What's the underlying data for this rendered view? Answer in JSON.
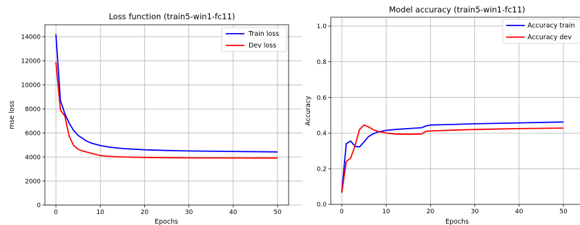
{
  "chart_data": [
    {
      "type": "line",
      "title": "Loss function (train5-win1-fc11)",
      "xlabel": "Epochs",
      "ylabel": "mse loss",
      "xlim": [
        -2.5,
        52.5
      ],
      "ylim": [
        0,
        15000
      ],
      "xticks": [
        0,
        10,
        20,
        30,
        40,
        50
      ],
      "yticks": [
        0,
        2000,
        4000,
        6000,
        8000,
        10000,
        12000,
        14000
      ],
      "grid": true,
      "legend_position": "top-right",
      "series": [
        {
          "name": "Train loss",
          "color": "#0000ff",
          "x": [
            0,
            1,
            2,
            3,
            4,
            5,
            6,
            7,
            8,
            10,
            12,
            15,
            20,
            25,
            30,
            40,
            50
          ],
          "y": [
            14200,
            8700,
            7600,
            6800,
            6200,
            5800,
            5550,
            5300,
            5150,
            4950,
            4820,
            4700,
            4600,
            4540,
            4500,
            4460,
            4420
          ]
        },
        {
          "name": "Dev loss",
          "color": "#ff0000",
          "x": [
            0,
            1,
            2,
            3,
            4,
            5,
            6,
            7,
            8,
            10,
            12,
            15,
            20,
            25,
            30,
            40,
            50
          ],
          "y": [
            11900,
            7900,
            7400,
            5700,
            4950,
            4650,
            4500,
            4400,
            4300,
            4120,
            4050,
            4000,
            3960,
            3940,
            3920,
            3915,
            3910
          ]
        }
      ]
    },
    {
      "type": "line",
      "title": "Model accuracy (train5-win1-fc11)",
      "xlabel": "Epochs",
      "ylabel": "Accuracy",
      "xlim": [
        -2.5,
        52.5
      ],
      "ylim": [
        0.0,
        1.05
      ],
      "xticks": [
        0,
        10,
        20,
        30,
        40,
        50
      ],
      "yticks": [
        0.0,
        0.2,
        0.4,
        0.6,
        0.8,
        1.0
      ],
      "ytick_labels": [
        "0.0",
        "0.2",
        "0.4",
        "0.6",
        "0.8",
        "1.0"
      ],
      "grid": true,
      "legend_position": "top-right",
      "series": [
        {
          "name": "Accuracy train",
          "color": "#0000ff",
          "x": [
            0,
            1,
            2,
            3,
            4,
            5,
            6,
            7,
            8,
            10,
            12,
            15,
            18,
            19,
            20,
            25,
            30,
            40,
            50
          ],
          "y": [
            0.07,
            0.34,
            0.355,
            0.325,
            0.322,
            0.35,
            0.38,
            0.395,
            0.405,
            0.415,
            0.42,
            0.425,
            0.43,
            0.44,
            0.445,
            0.448,
            0.452,
            0.457,
            0.462
          ]
        },
        {
          "name": "Accuracy dev",
          "color": "#ff0000",
          "x": [
            0,
            1,
            2,
            3,
            4,
            5,
            6,
            7,
            8,
            10,
            12,
            15,
            18,
            19,
            20,
            25,
            30,
            40,
            50
          ],
          "y": [
            0.065,
            0.24,
            0.26,
            0.33,
            0.42,
            0.445,
            0.435,
            0.42,
            0.41,
            0.4,
            0.395,
            0.393,
            0.395,
            0.41,
            0.412,
            0.416,
            0.42,
            0.425,
            0.428
          ]
        }
      ]
    }
  ]
}
